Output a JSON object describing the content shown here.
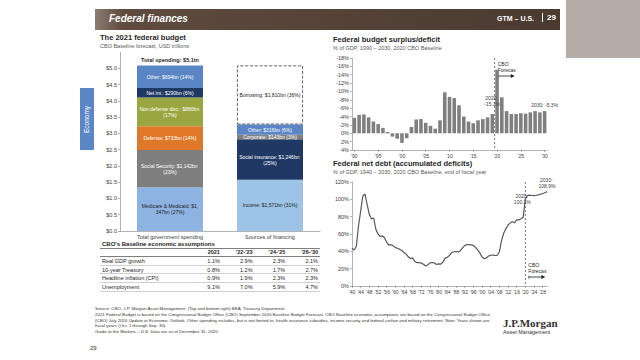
{
  "page": {
    "header": {
      "title": "Federal finances",
      "label": "GTM – U.S."
    },
    "page_number": "29",
    "section": "Economy",
    "table": {
      "title": "CBO's Baseline economic assumptions",
      "columns": [
        "2021",
        "'22-'23",
        "'24-'25",
        "'26-'30"
      ],
      "rows": [
        [
          "Real GDP growth",
          "1.1%",
          "2.9%",
          "2.3%",
          "2.1%"
        ],
        [
          "10-year Treasury",
          "0.8%",
          "1.2%",
          "1.7%",
          "2.7%"
        ],
        [
          "Headline inflation (CPI)",
          "0.9%",
          "1.9%",
          "2.3%",
          "2.3%"
        ],
        [
          "Unemployment",
          "9.1%",
          "7.0%",
          "5.9%",
          "4.7%"
        ]
      ]
    },
    "footer": [
      "Source: CBO, J.P. Morgan Asset Management; (Top and bottom right) BEA, Treasury Department.",
      "2021 Federal Budget is based on the Congressional Budget Office (CBO) September 2020 Baseline Budget Forecast. CBO Baseline economic assumptions are based on the Congressional Budget Office (CBO) July 2020 Update to Economic Outlook. Other spending includes, but is not limited to, health insurance subsidies, income security and federal civilian and military retirement. Note: Years shown are fiscal years (Oct. 1 through Sep. 30).",
      "Guide to the Markets – U.S. Data are as of December 31, 2020."
    ],
    "logo": {
      "name": "J.P.Morgan",
      "tagline": "Asset Management"
    }
  },
  "chart_data": [
    {
      "type": "bar",
      "title": "The 2021 federal budget",
      "subtitle": "CBO Baseline forecast, USD trillions",
      "categories": [
        "Total government spending",
        "Sources of financing"
      ],
      "ylim": [
        0,
        5.5
      ],
      "yticks": [
        {
          "value": 0,
          "label": "$0.0"
        },
        {
          "value": 0.5,
          "label": "$0.5"
        },
        {
          "value": 1,
          "label": "$1.0"
        },
        {
          "value": 1.5,
          "label": "$1.5"
        },
        {
          "value": 2,
          "label": "$2.0"
        },
        {
          "value": 2.5,
          "label": "$2.5"
        },
        {
          "value": 3,
          "label": "$3.0"
        },
        {
          "value": 3.5,
          "label": "$3.5"
        },
        {
          "value": 4,
          "label": "$4.0"
        },
        {
          "value": 4.5,
          "label": "$4.5"
        },
        {
          "value": 5,
          "label": "$5.0"
        }
      ],
      "stacked": true,
      "data_labels": true,
      "grid": false,
      "series": [
        {
          "color": "#8db3e2",
          "values": [
            1.347,
            null
          ],
          "value_labels": [
            "Medicare & Medicaid: $1,347bn (27%)",
            null
          ]
        },
        {
          "color": "#7f7f7f",
          "values": [
            1.142,
            null
          ],
          "value_labels": [
            "Social Security: $1,142bn (23%)",
            null
          ]
        },
        {
          "color": "#e0782a",
          "values": [
            0.733,
            null
          ],
          "value_labels": [
            "Defense: $733bn (14%)",
            null
          ]
        },
        {
          "color": "#9aa63f",
          "values": [
            0.88,
            null
          ],
          "value_labels": [
            "Non-defense disc.: $880bn (17%)",
            null
          ]
        },
        {
          "color": "#1f3864",
          "values": [
            0.29,
            null
          ],
          "value_labels": [
            "Net int.: $290bn (6%)",
            null
          ]
        },
        {
          "color": "#5a86c5",
          "values": [
            0.694,
            null
          ],
          "value_labels": [
            "Other: $694bn (14%)",
            null
          ]
        },
        {
          "color": "#9dc3e6",
          "values": [
            null,
            1.571
          ],
          "value_labels": [
            null,
            "Income: $1,571bn (31%)"
          ]
        },
        {
          "color": "#203864",
          "values": [
            null,
            1.246
          ],
          "value_labels": [
            null,
            "Social insurance: $1,246bn (25%)"
          ]
        },
        {
          "color": "#7f7f7f",
          "values": [
            null,
            0.143
          ],
          "value_labels": [
            null,
            "Corporate: $143bn (3%)"
          ]
        },
        {
          "color": "#5a86c5",
          "values": [
            null,
            0.316
          ],
          "value_labels": [
            null,
            "Other: $316bn (6%)"
          ]
        },
        {
          "color": "#ffffff",
          "line_style": "dashed",
          "values": [
            null,
            1.81
          ],
          "value_labels": [
            null,
            "Borrowing: $1,810bn (36%)"
          ]
        }
      ],
      "annotations": [
        {
          "text": "Total spending: $5.1tn",
          "x": "Total government spending"
        }
      ]
    },
    {
      "type": "bar",
      "title": "Federal budget surplus/deficit",
      "subtitle": "% of GDP, 1990 – 2030, 2020 CBO Baseline",
      "categories": [
        "'90",
        null,
        null,
        null,
        null,
        "'95",
        null,
        null,
        null,
        null,
        "'00",
        null,
        null,
        null,
        null,
        "'05",
        null,
        null,
        null,
        null,
        "'10",
        null,
        null,
        null,
        null,
        "'15",
        null,
        null,
        null,
        null,
        "'20",
        null,
        null,
        null,
        null,
        "'25",
        null,
        null,
        null,
        null,
        "'30"
      ],
      "ylim": [
        4,
        -18
      ],
      "yticks": [
        {
          "value": -18,
          "label": "-18%"
        },
        {
          "value": -16,
          "label": "-16%"
        },
        {
          "value": -14,
          "label": "-14%"
        },
        {
          "value": -12,
          "label": "-12%"
        },
        {
          "value": -10,
          "label": "-10%"
        },
        {
          "value": -8,
          "label": "-8%"
        },
        {
          "value": -6,
          "label": "-6%"
        },
        {
          "value": -4,
          "label": "-4%"
        },
        {
          "value": -2,
          "label": "-2%"
        },
        {
          "value": 0,
          "label": "0%"
        },
        {
          "value": 2,
          "label": "2%"
        },
        {
          "value": 4,
          "label": "4%"
        }
      ],
      "grid": false,
      "series": [
        {
          "color": "#7f7f7f",
          "values": [
            -3.7,
            -4.4,
            -4.5,
            -3.8,
            -2.8,
            -2.2,
            -1.3,
            -0.3,
            0.8,
            1.3,
            2.3,
            1.2,
            -1.5,
            -3.3,
            -3.4,
            -2.5,
            -1.8,
            -1.1,
            -3.1,
            -9.8,
            -8.7,
            -8.4,
            -6.7,
            -4.0,
            -2.8,
            -2.4,
            -3.1,
            -3.4,
            -3.8,
            -4.6,
            -15.2,
            -8.6,
            -5.3,
            -4.6,
            -4.6,
            -4.8,
            -4.7,
            -5.0,
            -5.3,
            -5.0,
            -5.3
          ],
          "value_labels": [
            null,
            null,
            null,
            null,
            null,
            null,
            null,
            null,
            null,
            null,
            null,
            null,
            null,
            null,
            null,
            null,
            null,
            null,
            null,
            null,
            null,
            null,
            null,
            null,
            null,
            null,
            null,
            null,
            null,
            null,
            "2020: -15.2%",
            null,
            null,
            null,
            null,
            null,
            null,
            null,
            null,
            null,
            "2030: -5.3%"
          ]
        }
      ],
      "annotations": [
        {
          "text": "CBO Forecast",
          "x": "'20"
        }
      ]
    },
    {
      "type": "line",
      "title": "Federal net debt (accumulated deficits)",
      "subtitle": "% of GDP, 1940 – 2030, 2020 CBO Baseline, end of fiscal year",
      "categories": [
        "'40",
        null,
        null,
        null,
        "'44",
        null,
        null,
        null,
        "'48",
        null,
        null,
        null,
        "'52",
        null,
        null,
        null,
        "'56",
        null,
        null,
        null,
        "'60",
        null,
        null,
        null,
        "'64",
        null,
        null,
        null,
        "'68",
        null,
        null,
        null,
        "'72",
        null,
        null,
        null,
        "'76",
        null,
        null,
        null,
        "'80",
        null,
        null,
        null,
        "'84",
        null,
        null,
        null,
        "'88",
        null,
        null,
        null,
        "'92",
        null,
        null,
        null,
        "'96",
        null,
        null,
        null,
        "'00",
        null,
        null,
        null,
        "'04",
        null,
        null,
        null,
        "'08",
        null,
        null,
        null,
        "'12",
        null,
        null,
        null,
        "'16",
        null,
        null,
        null,
        "'20",
        null,
        null,
        null,
        "'24",
        null,
        null,
        null,
        "'28",
        null,
        null
      ],
      "ylim": [
        0,
        120
      ],
      "yticks": [
        {
          "value": 0,
          "label": "0%"
        },
        {
          "value": 20,
          "label": "20%"
        },
        {
          "value": 40,
          "label": "40%"
        },
        {
          "value": 60,
          "label": "60%"
        },
        {
          "value": 80,
          "label": "80%"
        },
        {
          "value": 100,
          "label": "100%"
        },
        {
          "value": 120,
          "label": "120%"
        }
      ],
      "grid": false,
      "series": [
        {
          "color": "#595959",
          "values": [
            43.6,
            41.5,
            45.9,
            69.2,
            86.4,
            103.9,
            106.1,
            93.9,
            82.4,
            77.4,
            78.5,
            65.4,
            60.1,
            57.1,
            57.9,
            55.7,
            50.6,
            47.2,
            47.7,
            46.4,
            44.3,
            43.5,
            42.3,
            41.0,
            38.7,
            36.7,
            33.7,
            31.8,
            32.2,
            28.3,
            27.0,
            27.1,
            26.4,
            25.1,
            23.1,
            24.5,
            26.7,
            27.1,
            26.6,
            24.9,
            25.5,
            25.2,
            27.9,
            32.1,
            33.1,
            35.3,
            38.4,
            39.5,
            39.8,
            39.3,
            40.8,
            44.0,
            46.6,
            47.8,
            47.7,
            47.5,
            46.8,
            44.5,
            41.6,
            38.2,
            33.6,
            31.4,
            32.5,
            34.5,
            35.5,
            35.6,
            35.3,
            35.2,
            39.3,
            52.3,
            60.9,
            65.9,
            70.4,
            72.6,
            74.1,
            72.9,
            76.4,
            76.2,
            77.6,
            79.2,
            100.1,
            104.4,
            104.8,
            104.4,
            104.3,
            104.7,
            105.1,
            105.9,
            106.5,
            107.6,
            108.9
          ],
          "value_labels": [
            null,
            null,
            null,
            null,
            null,
            null,
            null,
            null,
            null,
            null,
            null,
            null,
            null,
            null,
            null,
            null,
            null,
            null,
            null,
            null,
            null,
            null,
            null,
            null,
            null,
            null,
            null,
            null,
            null,
            null,
            null,
            null,
            null,
            null,
            null,
            null,
            null,
            null,
            null,
            null,
            null,
            null,
            null,
            null,
            null,
            null,
            null,
            null,
            null,
            null,
            null,
            null,
            null,
            null,
            null,
            null,
            null,
            null,
            null,
            null,
            null,
            null,
            null,
            null,
            null,
            null,
            null,
            null,
            null,
            null,
            null,
            null,
            null,
            null,
            null,
            null,
            null,
            null,
            null,
            null,
            "2020: 100.1%",
            null,
            null,
            null,
            null,
            null,
            null,
            null,
            null,
            null,
            "2030: 108.9%"
          ]
        }
      ],
      "annotations": [
        {
          "text": "CBO Forecast",
          "x": "'20"
        }
      ]
    }
  ]
}
